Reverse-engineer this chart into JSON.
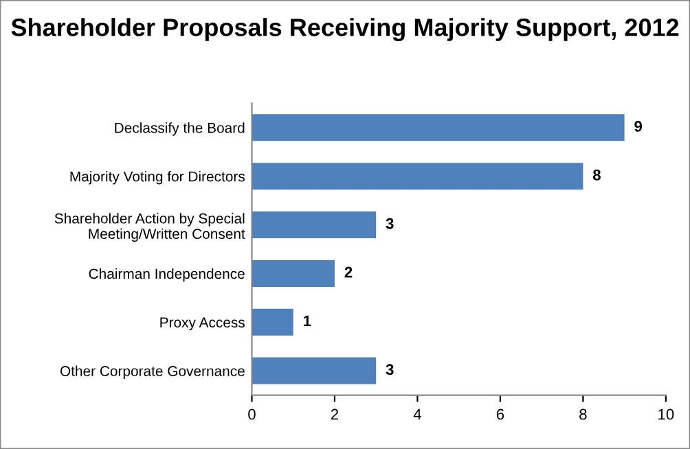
{
  "chart_data": {
    "type": "bar",
    "orientation": "horizontal",
    "title": "Shareholder Proposals Receiving Majority Support, 2012",
    "categories": [
      "Declassify the Board",
      "Majority Voting for Directors",
      "Shareholder Action by Special\nMeeting/Written Consent",
      "Chairman Independence",
      "Proxy Access",
      "Other Corporate Governance"
    ],
    "values": [
      9,
      8,
      3,
      2,
      1,
      3
    ],
    "color": "#4f81bd",
    "xlim": [
      0,
      10
    ],
    "xticks": [
      0,
      2,
      4,
      6,
      8,
      10
    ],
    "grid": false,
    "data_labels": true
  }
}
